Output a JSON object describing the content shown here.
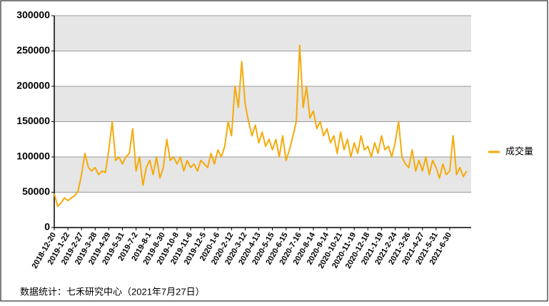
{
  "chart_data": {
    "type": "line",
    "categories": [
      "2018-12-20",
      null,
      null,
      null,
      "2019-1-22",
      null,
      null,
      null,
      "2019-2-27",
      null,
      null,
      null,
      "2019-3-28",
      null,
      null,
      null,
      "2019-4-29",
      null,
      null,
      null,
      "2019-5-31",
      null,
      null,
      null,
      "2019-7-2",
      null,
      null,
      null,
      "2019-8-1",
      null,
      null,
      null,
      "2019-8-30",
      null,
      null,
      null,
      "2019-10-8",
      null,
      null,
      null,
      "2019-11-6",
      null,
      null,
      null,
      "2019-12-5",
      null,
      null,
      null,
      "2020-1-6",
      null,
      null,
      null,
      "2020-2-12",
      null,
      null,
      null,
      "2020-3-12",
      null,
      null,
      null,
      "2020-4-13",
      null,
      null,
      null,
      "2020-5-15",
      null,
      null,
      null,
      "2020-6-15",
      null,
      null,
      null,
      "2020-7-16",
      null,
      null,
      null,
      "2020-8-14",
      null,
      null,
      null,
      "2020-9-14",
      null,
      null,
      null,
      "2020-10-21",
      null,
      null,
      null,
      "2020-11-19",
      null,
      null,
      null,
      "2020-12-18",
      null,
      null,
      null,
      "2021-1-19",
      null,
      null,
      null,
      "2021-2-24",
      null,
      null,
      null,
      "2021-3-26",
      null,
      null,
      null,
      "2021-4-27",
      null,
      null,
      null,
      "2021-5-31",
      null,
      null,
      null,
      "2021-6-30",
      null,
      null,
      null,
      null,
      null
    ],
    "series": [
      {
        "name": "成交量",
        "color": "#f5aa0a",
        "values": [
          48000,
          30000,
          35000,
          42000,
          38000,
          42000,
          45000,
          52000,
          75000,
          105000,
          85000,
          80000,
          85000,
          75000,
          80000,
          78000,
          110000,
          150000,
          95000,
          100000,
          90000,
          100000,
          105000,
          140000,
          80000,
          100000,
          60000,
          85000,
          95000,
          75000,
          100000,
          70000,
          85000,
          125000,
          95000,
          100000,
          90000,
          100000,
          80000,
          95000,
          85000,
          90000,
          80000,
          95000,
          90000,
          85000,
          105000,
          90000,
          110000,
          100000,
          115000,
          150000,
          130000,
          200000,
          170000,
          235000,
          175000,
          150000,
          130000,
          145000,
          120000,
          135000,
          115000,
          125000,
          110000,
          125000,
          100000,
          130000,
          95000,
          110000,
          130000,
          150000,
          258000,
          170000,
          200000,
          155000,
          165000,
          140000,
          150000,
          130000,
          140000,
          120000,
          130000,
          105000,
          135000,
          110000,
          125000,
          100000,
          120000,
          105000,
          130000,
          110000,
          115000,
          100000,
          120000,
          105000,
          130000,
          110000,
          115000,
          100000,
          120000,
          150000,
          100000,
          90000,
          85000,
          110000,
          80000,
          95000,
          80000,
          100000,
          75000,
          95000,
          85000,
          70000,
          90000,
          75000,
          80000,
          130000,
          75000,
          85000,
          72000,
          80000
        ]
      }
    ],
    "ylim": [
      0,
      300000
    ],
    "yticks": [
      0,
      50000,
      100000,
      150000,
      200000,
      250000,
      300000
    ],
    "grid": true,
    "legend": "right",
    "source": "数据统计：七禾研究中心（2021年7月27日）"
  }
}
